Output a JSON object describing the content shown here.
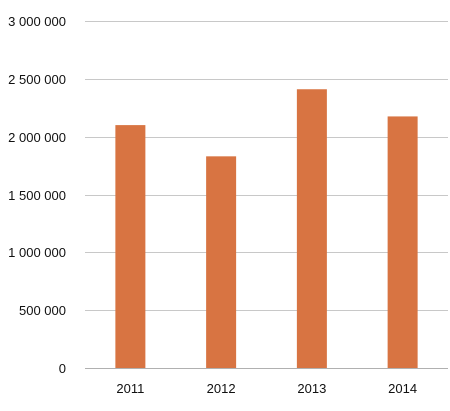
{
  "chart_data": {
    "type": "bar",
    "title": "",
    "xlabel": "",
    "ylabel": "",
    "categories": [
      "2011",
      "2012",
      "2013",
      "2014"
    ],
    "values": [
      2100000,
      1830000,
      2410000,
      2175000
    ],
    "ylim": [
      0,
      3000000
    ],
    "yticks": [
      0,
      500000,
      1000000,
      1500000,
      2000000,
      2500000,
      3000000
    ],
    "ytick_labels": [
      "0",
      "500 000",
      "1 000 000",
      "1 500 000",
      "2 000 000",
      "2 500 000",
      "3 000 000"
    ],
    "grid": true,
    "legend": "none",
    "bar_color": "#d87442"
  }
}
